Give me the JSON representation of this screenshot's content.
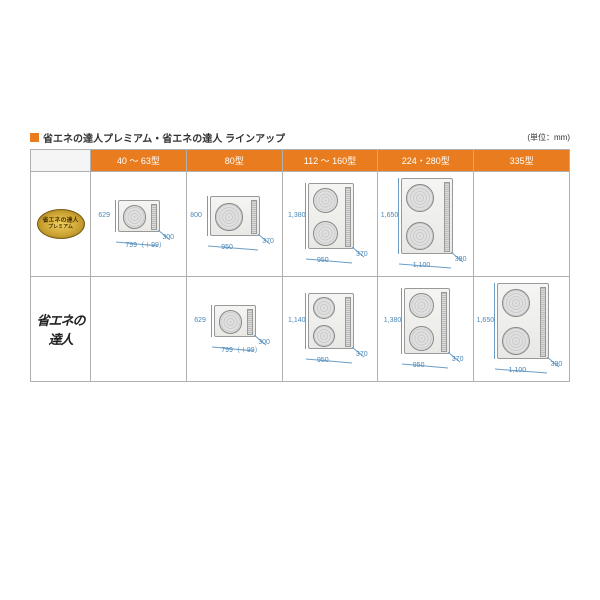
{
  "title": "省エネの達人プレミアム・省エネの達人 ラインアップ",
  "unit_label": "(単位：mm)",
  "accent_color": "#e87c1e",
  "dim_color": "#4a88b8",
  "columns": [
    "40 ～ 63型",
    "80型",
    "112 ～ 160型",
    "224・280型",
    "335型"
  ],
  "rows": [
    {
      "key": "premium",
      "badge": {
        "l1": "省エネの達人",
        "l2": "プレミアム"
      },
      "cells": [
        {
          "fans": 1,
          "uw": 42,
          "uh": 32,
          "h": "629",
          "w": "799（＋99）",
          "d": "300"
        },
        {
          "fans": 1,
          "uw": 50,
          "uh": 40,
          "h": "800",
          "w": "950",
          "d": "370"
        },
        {
          "fans": 2,
          "uw": 46,
          "uh": 66,
          "h": "1,380",
          "w": "950",
          "d": "370"
        },
        {
          "fans": 2,
          "uw": 52,
          "uh": 76,
          "h": "1,650",
          "w": "1,100",
          "d": "390"
        },
        null
      ]
    },
    {
      "key": "standard",
      "brush_text": "省エネの達人",
      "cells": [
        null,
        {
          "fans": 1,
          "uw": 42,
          "uh": 32,
          "h": "629",
          "w": "799（＋99）",
          "d": "300"
        },
        {
          "fans": 2,
          "uw": 46,
          "uh": 56,
          "h": "1,140",
          "w": "950",
          "d": "370"
        },
        {
          "fans": 2,
          "uw": 46,
          "uh": 66,
          "h": "1,380",
          "w": "950",
          "d": "370"
        },
        {
          "fans": 2,
          "uw": 52,
          "uh": 76,
          "h": "1,650",
          "w": "1,100",
          "d": "390"
        }
      ]
    }
  ]
}
